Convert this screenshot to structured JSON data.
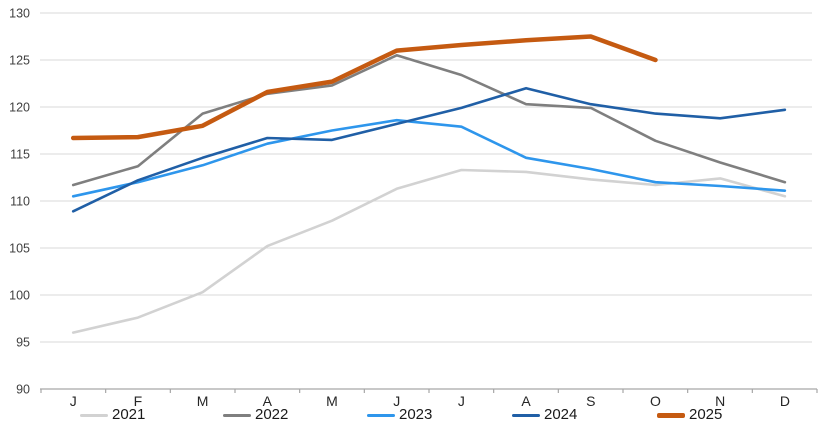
{
  "chart_data": {
    "type": "line",
    "title": "",
    "xlabel": "",
    "ylabel": "",
    "x_tick_labels": [
      "J",
      "F",
      "M",
      "A",
      "M",
      "J",
      "J",
      "A",
      "S",
      "O",
      "N",
      "D"
    ],
    "y_ticks": [
      90,
      95,
      100,
      105,
      110,
      115,
      120,
      125,
      130
    ],
    "ylim": [
      90,
      130
    ],
    "grid": "horizontal",
    "legend_position": "bottom",
    "colors": {
      "grid_line": "#D9D9D9",
      "axis_line": "#A6A6A6",
      "y_tick_text": "#404040",
      "x_tick_text": "#262626"
    },
    "series": [
      {
        "name": "2021",
        "color": "#D2D2D2",
        "stroke_width": 2.6,
        "values": [
          96.0,
          97.6,
          100.3,
          105.2,
          107.9,
          111.3,
          113.3,
          113.1,
          112.3,
          111.7,
          112.4,
          110.5
        ]
      },
      {
        "name": "2022",
        "color": "#7F7F7F",
        "stroke_width": 2.6,
        "values": [
          111.7,
          113.7,
          119.3,
          121.4,
          122.3,
          125.5,
          123.4,
          120.3,
          119.9,
          116.4,
          114.1,
          112.0
        ]
      },
      {
        "name": "2023",
        "color": "#2E96EC",
        "stroke_width": 2.6,
        "values": [
          110.5,
          112.0,
          113.8,
          116.1,
          117.5,
          118.6,
          117.9,
          114.6,
          113.4,
          112.0,
          111.6,
          111.1
        ]
      },
      {
        "name": "2024",
        "color": "#205FA6",
        "stroke_width": 2.6,
        "values": [
          108.9,
          112.2,
          114.6,
          116.7,
          116.5,
          118.2,
          119.9,
          122.0,
          120.3,
          119.3,
          118.8,
          119.7
        ]
      },
      {
        "name": "2025",
        "color": "#C55A11",
        "stroke_width": 4.5,
        "values": [
          116.7,
          116.8,
          118.0,
          121.6,
          122.7,
          126.0,
          126.6,
          127.1,
          127.5,
          125.0,
          null,
          null
        ]
      }
    ]
  },
  "legend": {
    "items": [
      {
        "label": "2021"
      },
      {
        "label": "2022"
      },
      {
        "label": "2023"
      },
      {
        "label": "2024"
      },
      {
        "label": "2025"
      }
    ]
  }
}
